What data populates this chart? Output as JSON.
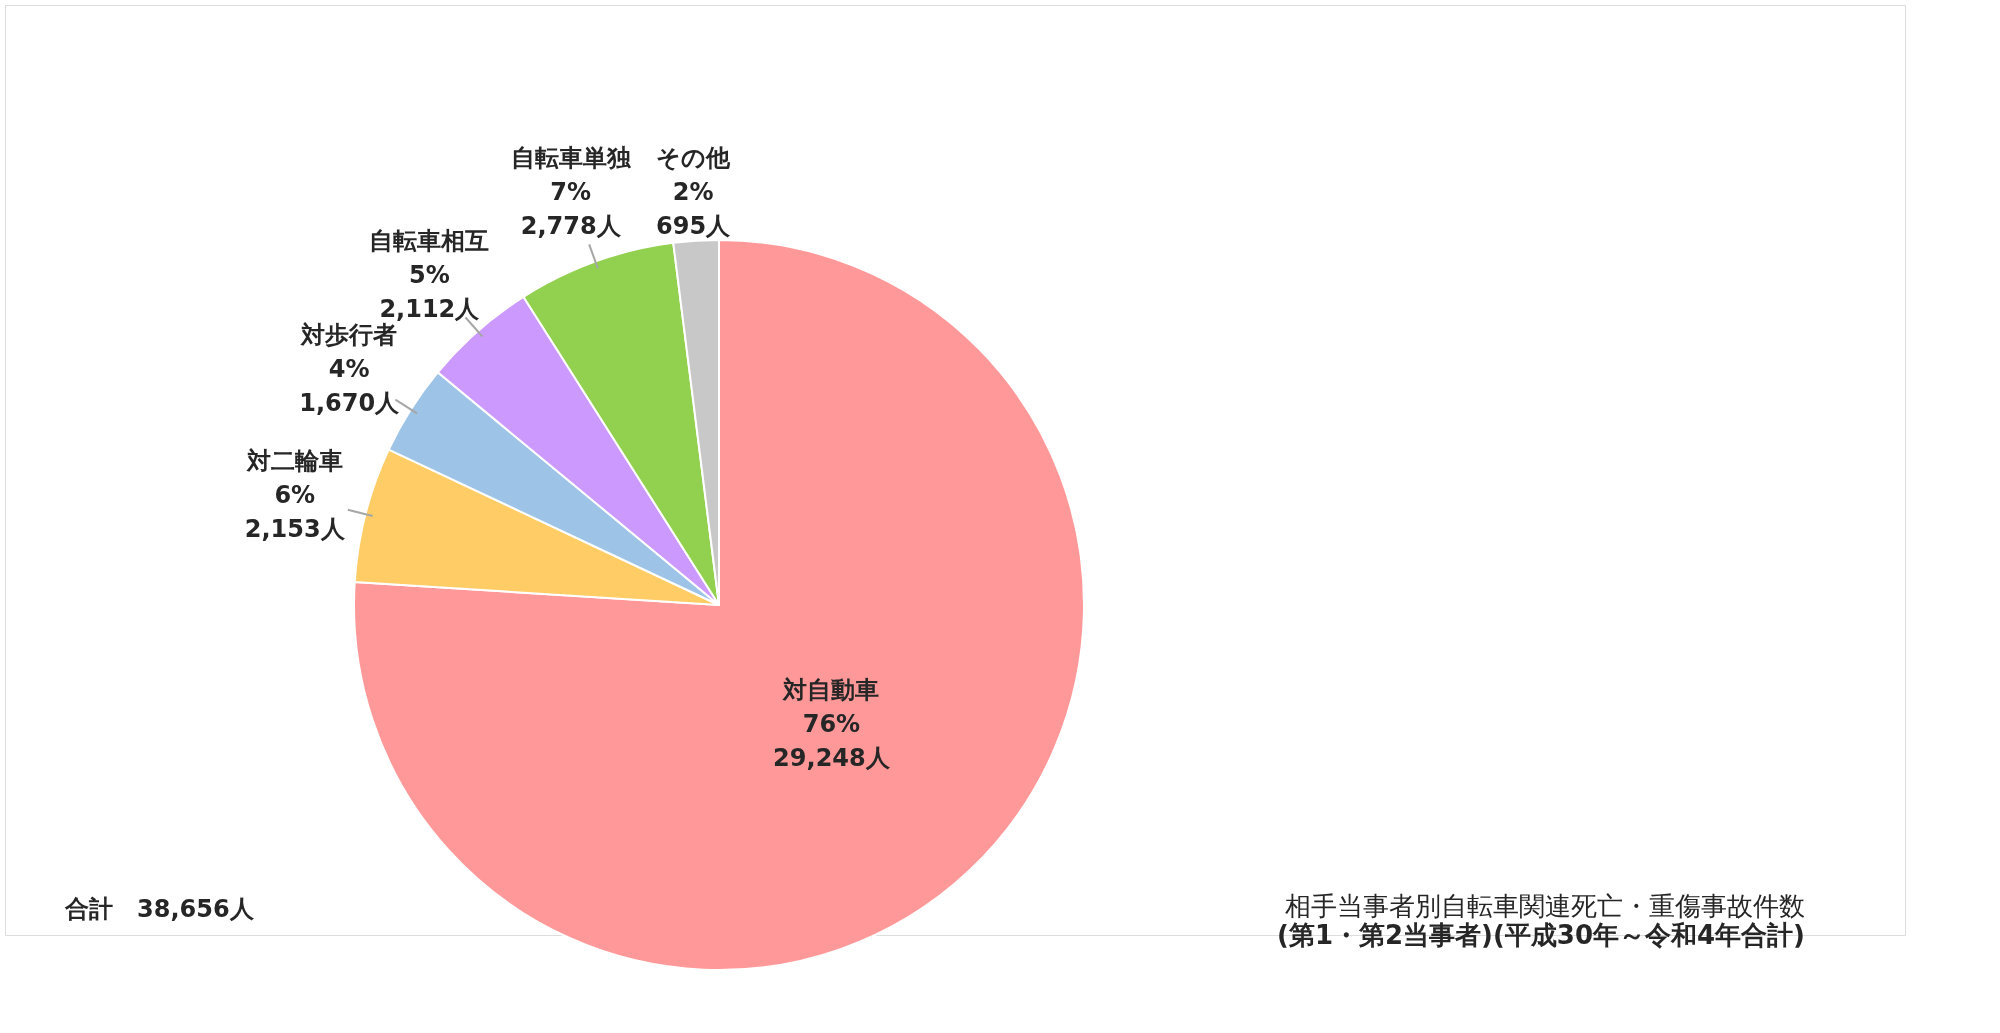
{
  "chart_data": {
    "type": "pie",
    "title": "相手当事者別自転車関連死亡・重傷事故件数",
    "subtitle": "(第1・第2当事者)(平成30年～令和4年合計)",
    "categories": [
      "対自動車",
      "対二輪車",
      "対歩行者",
      "自転車相互",
      "自転車単独",
      "その他"
    ],
    "values": [
      76,
      6,
      4,
      5,
      7,
      2
    ],
    "colors": [
      "#ff9999",
      "#ffcc66",
      "#9dc3e6",
      "#cc99ff",
      "#92d050",
      "#c8c8c8"
    ],
    "value_labels": [
      [
        "76%",
        "29,248人"
      ],
      [
        "6%",
        "2,153人"
      ],
      [
        "4%",
        "1,670人"
      ],
      [
        "5%",
        "2,112人"
      ],
      [
        "7%",
        "2,778人"
      ],
      [
        "2%",
        "695人"
      ]
    ],
    "annotations": [
      "合計　38,656人"
    ]
  }
}
